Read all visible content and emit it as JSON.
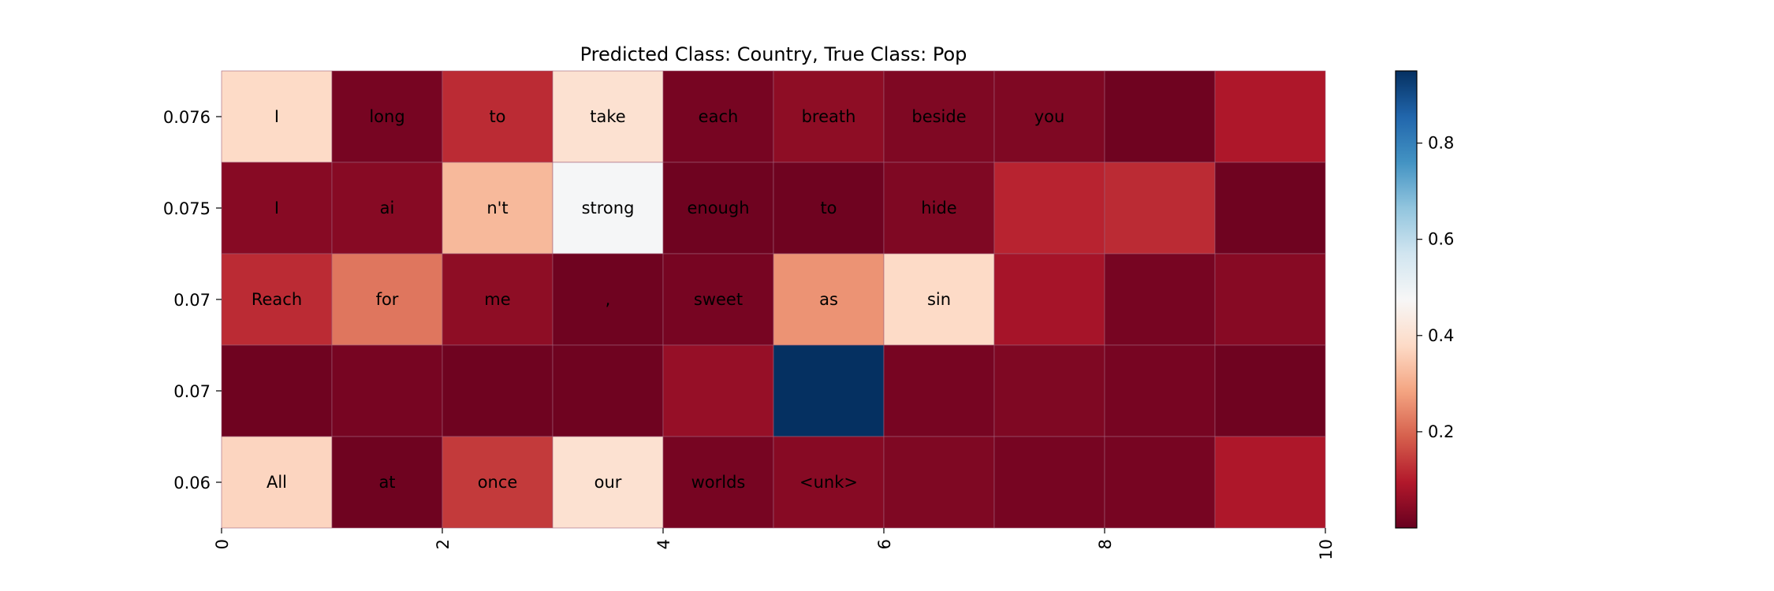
{
  "chart_data": {
    "type": "heatmap",
    "title": "Predicted Class: Country, True Class: Pop",
    "xlabel": "",
    "ylabel": "",
    "x_ticks": [
      "0",
      "2",
      "4",
      "6",
      "8",
      "10"
    ],
    "x_tick_values": [
      0,
      2,
      4,
      6,
      8,
      10
    ],
    "xlim": [
      0,
      10
    ],
    "y_labels": [
      "0.076",
      "0.075",
      "0.07",
      "0.07",
      "0.06"
    ],
    "tokens": [
      [
        "I",
        "long",
        "to",
        "take",
        "each",
        "breath",
        "beside",
        "you",
        "",
        ""
      ],
      [
        "I",
        "ai",
        "n't",
        "strong",
        "enough",
        "to",
        "hide",
        "",
        "",
        ""
      ],
      [
        "Reach",
        "for",
        "me",
        ",",
        "sweet",
        "as",
        "sin",
        "",
        "",
        ""
      ],
      [
        "",
        "",
        "",
        "",
        "",
        "",
        "",
        "",
        "",
        ""
      ],
      [
        "All",
        "at",
        "once",
        "our",
        "worlds",
        "<unk>",
        "",
        "",
        "",
        ""
      ]
    ],
    "values": [
      [
        0.38,
        0.02,
        0.12,
        0.4,
        0.02,
        0.05,
        0.03,
        0.03,
        0.01,
        0.09
      ],
      [
        0.04,
        0.04,
        0.32,
        0.48,
        0.01,
        0.01,
        0.03,
        0.11,
        0.12,
        0.01
      ],
      [
        0.12,
        0.22,
        0.05,
        0.01,
        0.02,
        0.26,
        0.38,
        0.08,
        0.02,
        0.04
      ],
      [
        0.01,
        0.02,
        0.01,
        0.01,
        0.06,
        0.95,
        0.02,
        0.03,
        0.02,
        0.01
      ],
      [
        0.37,
        0.01,
        0.14,
        0.4,
        0.02,
        0.04,
        0.03,
        0.02,
        0.02,
        0.09
      ]
    ],
    "colormap": "RdBu",
    "colorbar": {
      "vmin": 0.0,
      "vmax": 0.95,
      "ticks": [
        0.2,
        0.4,
        0.6,
        0.8
      ],
      "tick_labels": [
        "0.2",
        "0.4",
        "0.6",
        "0.8"
      ]
    },
    "colors": {
      "low": "#67001f",
      "mid": "#f7f7f7",
      "high": "#053061",
      "grid": "#a0607a"
    }
  }
}
